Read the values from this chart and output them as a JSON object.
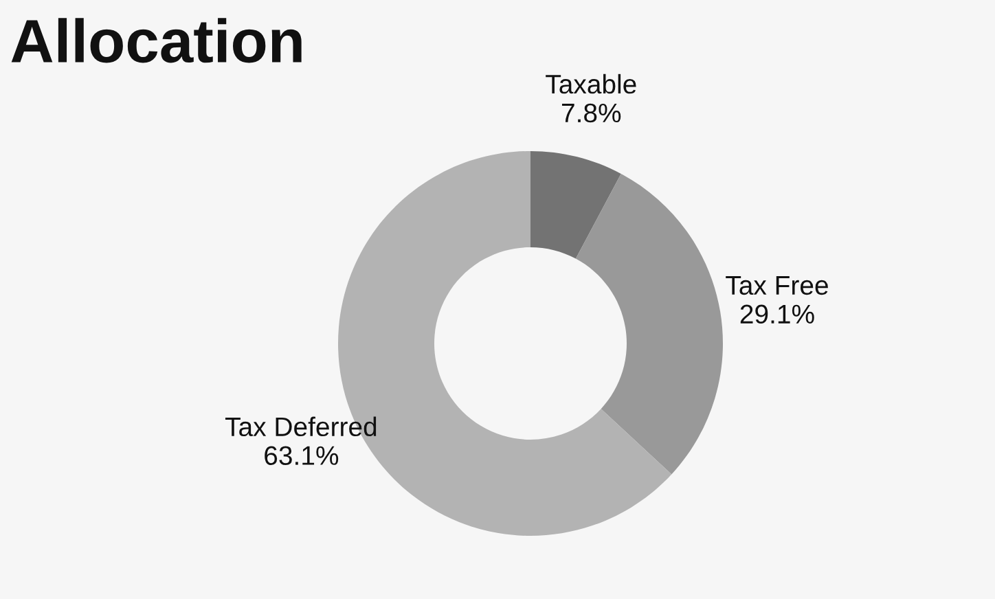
{
  "chart_data": {
    "type": "donut",
    "title": "Allocation",
    "categories": [
      "Taxable",
      "Tax Free",
      "Tax Deferred"
    ],
    "values": [
      7.8,
      29.1,
      63.1
    ],
    "colors": [
      "#737373",
      "#999999",
      "#b3b3b3"
    ],
    "value_labels": [
      "7.8%",
      "29.1%",
      "63.1%"
    ],
    "legend": false
  }
}
